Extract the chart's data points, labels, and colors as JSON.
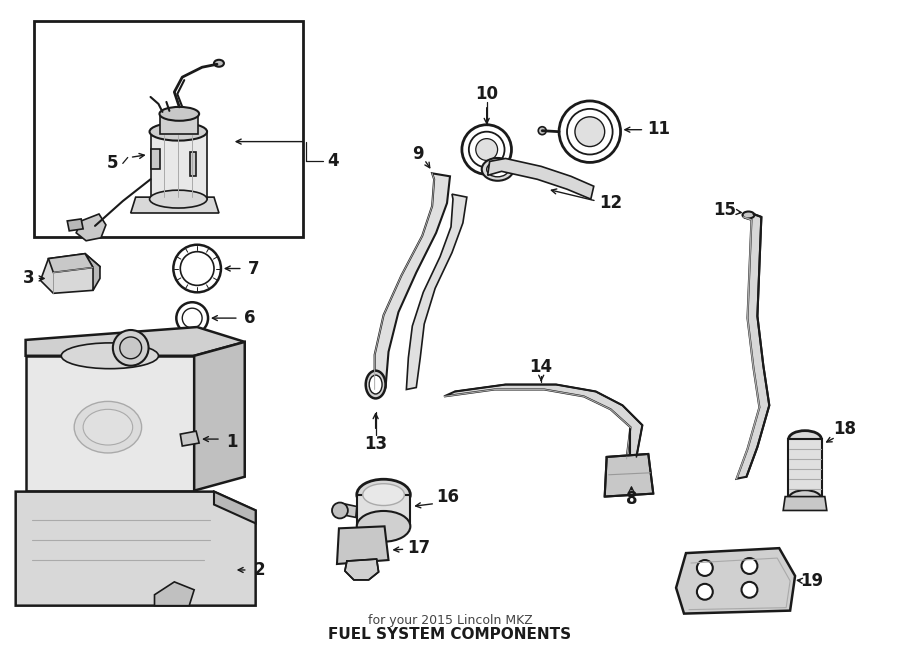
{
  "title": "FUEL SYSTEM COMPONENTS",
  "subtitle": "for your 2015 Lincoln MKZ",
  "bg_color": "#ffffff",
  "line_color": "#1a1a1a",
  "figsize": [
    9.0,
    6.61
  ],
  "dpi": 100
}
